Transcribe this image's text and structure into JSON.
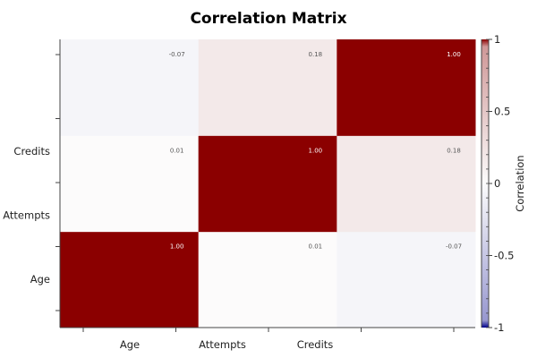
{
  "chart_data": {
    "type": "heatmap",
    "title": "Correlation Matrix",
    "x_tick_labels": [
      "Age",
      "Attempts",
      "Credits"
    ],
    "y_tick_labels": [
      "Age",
      "Attempts",
      "Credits"
    ],
    "matrix": [
      [
        1.0,
        0.01,
        -0.07
      ],
      [
        0.01,
        1.0,
        0.18
      ],
      [
        -0.07,
        0.18,
        1.0
      ]
    ],
    "cell_text": [
      [
        "1.00",
        "0.01",
        "-0.07"
      ],
      [
        "0.01",
        "1.00",
        "0.18"
      ],
      [
        "-0.07",
        "0.18",
        "1.00"
      ]
    ],
    "value_range": [
      -1,
      1
    ],
    "colorbar": {
      "label": "Correlation",
      "ticks": [
        1,
        0.5,
        0,
        -0.5,
        -1
      ],
      "tick_labels": [
        "1",
        "0.5",
        "0",
        "-0.5",
        "-1"
      ]
    },
    "colors": {
      "high": "#8b0000",
      "mid": "#fcfcfc",
      "low": "#00008b"
    }
  }
}
